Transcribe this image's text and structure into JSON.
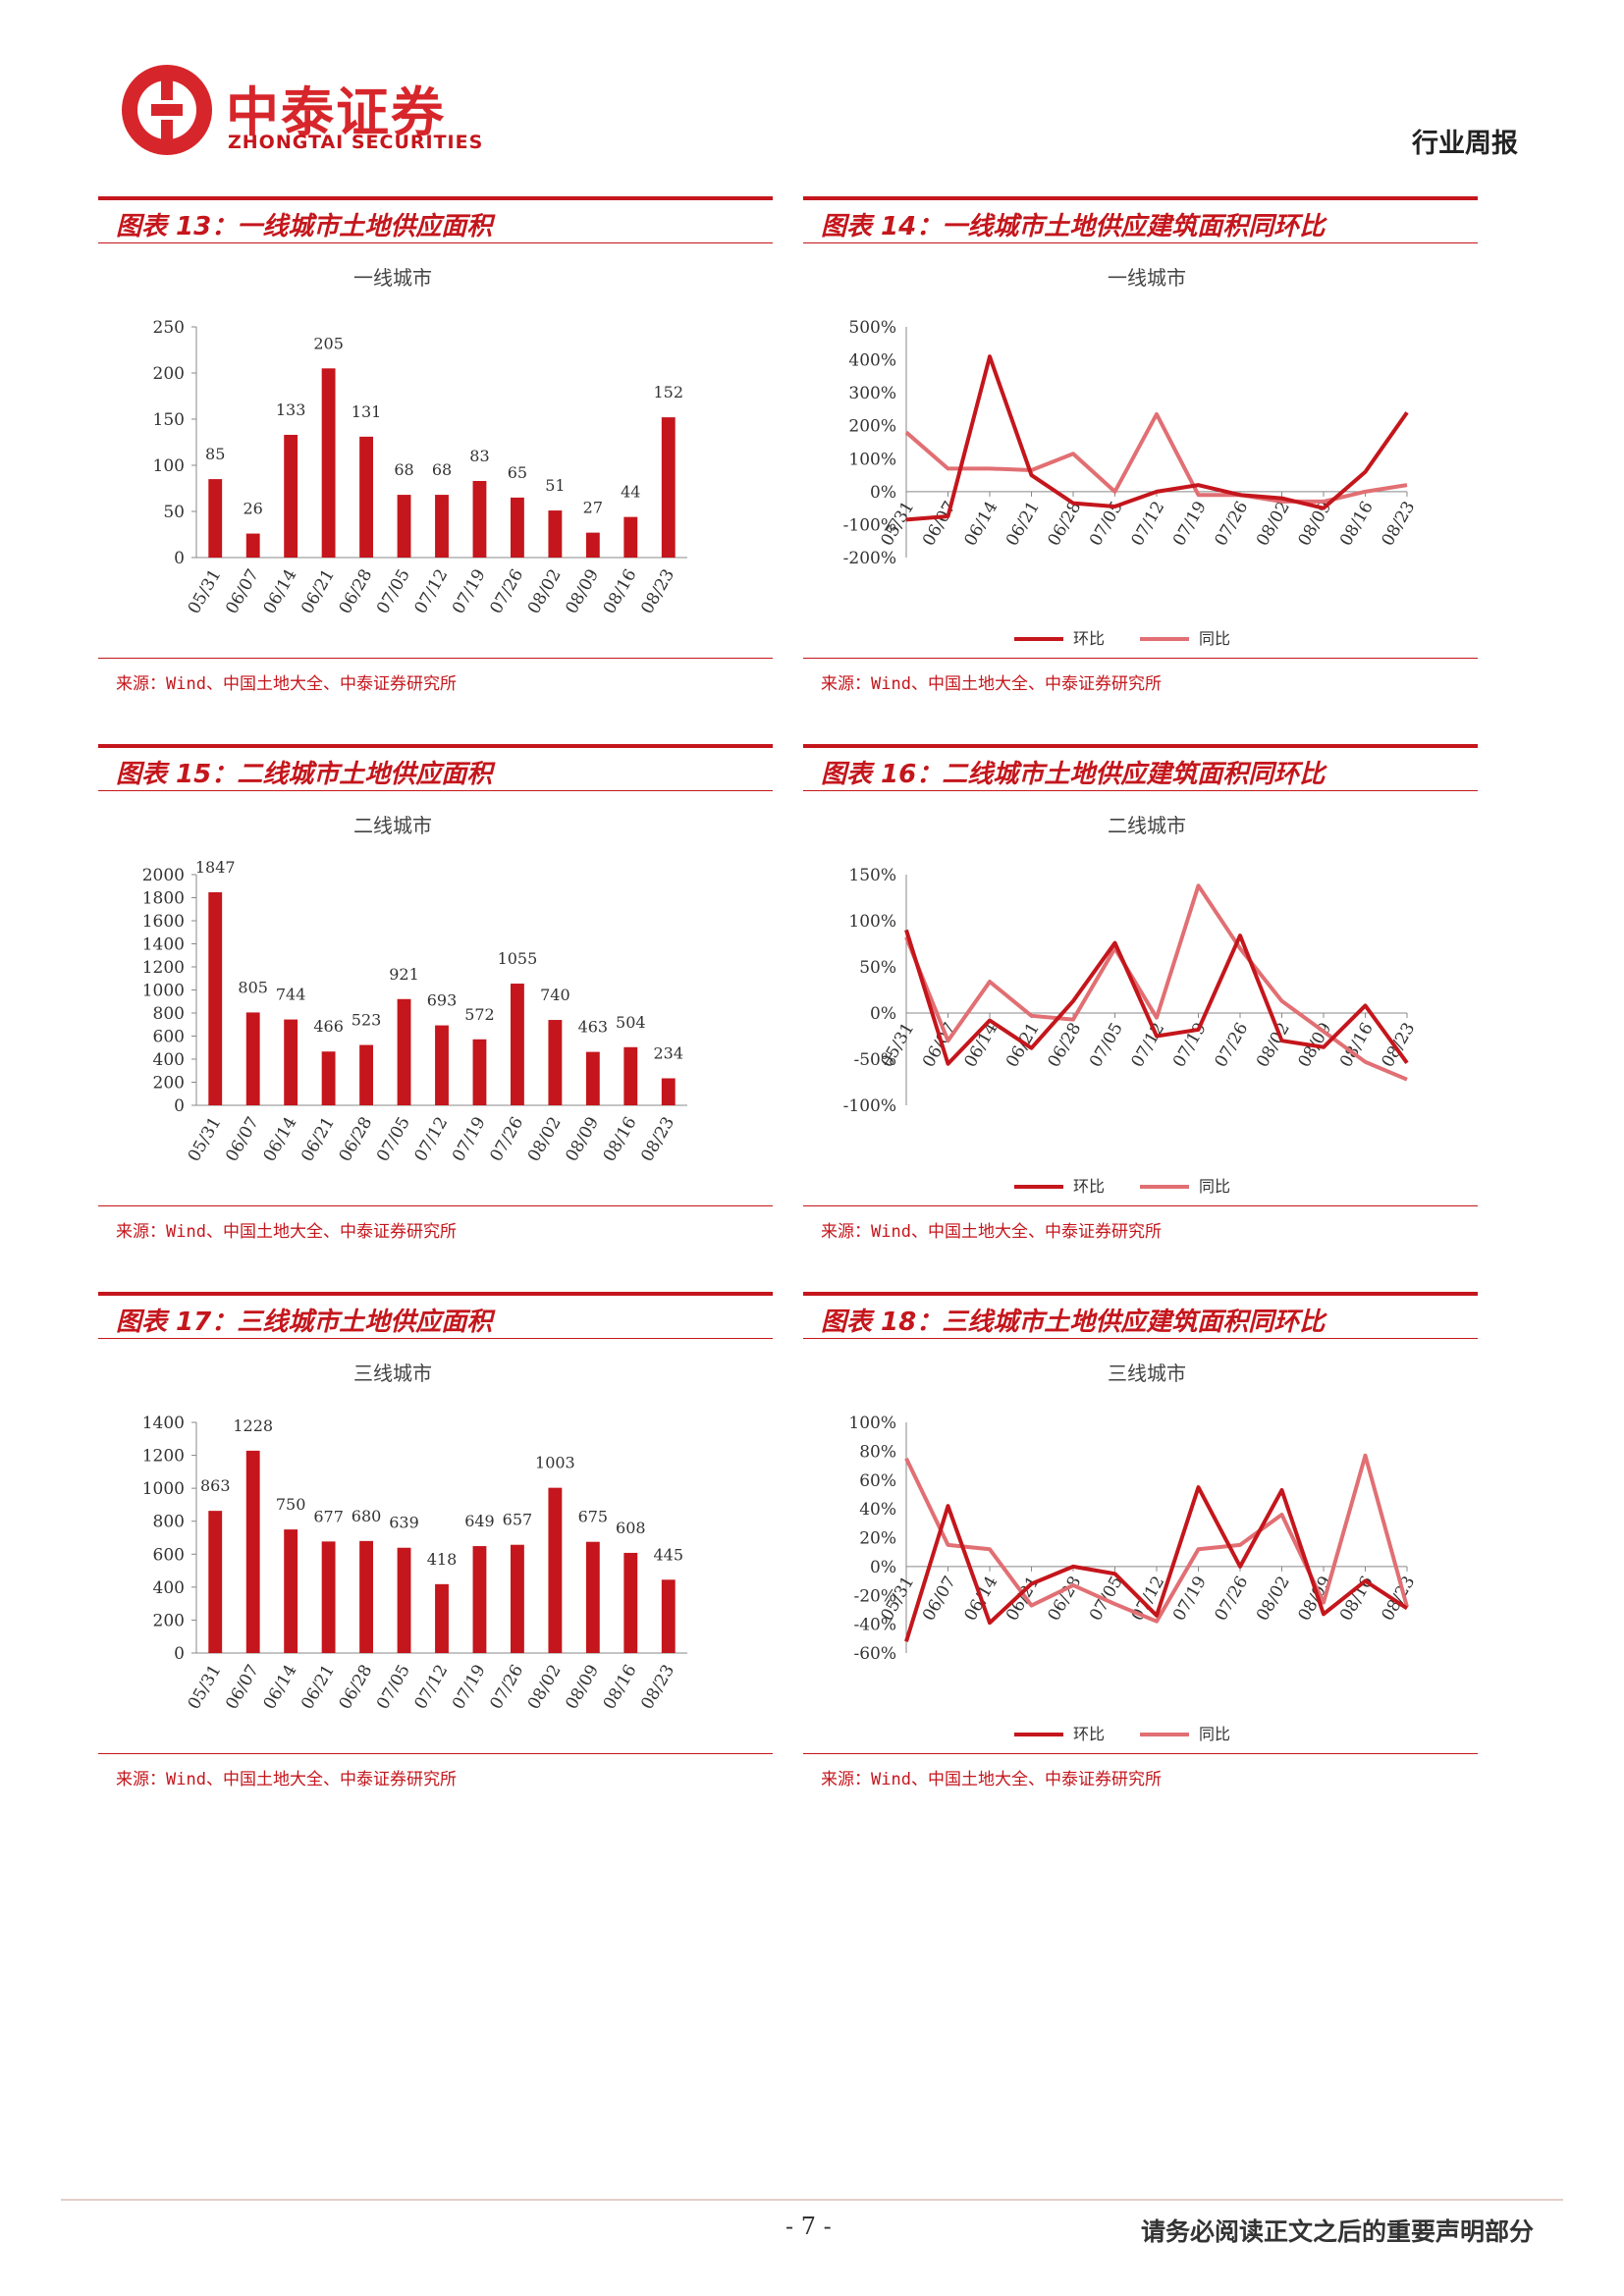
{
  "header": {
    "company_cn": "中泰证券",
    "company_en": "ZHONGTAI SECURITIES",
    "report_type": "行业周报"
  },
  "colors": {
    "accent": "#c4161c",
    "bar": "#c4161c",
    "line_hb": "#c4161c",
    "line_tb": "#e16f73"
  },
  "panels": [
    {
      "title": "图表 13：一线城市土地供应面积",
      "source": "来源：Wind、中国土地大全、中泰证券研究所"
    },
    {
      "title": "图表 14：一线城市土地供应建筑面积同环比",
      "source": "来源：Wind、中国土地大全、中泰证券研究所"
    },
    {
      "title": "图表 15：二线城市土地供应面积",
      "source": "来源：Wind、中国土地大全、中泰证券研究所"
    },
    {
      "title": "图表 16：二线城市土地供应建筑面积同环比",
      "source": "来源：Wind、中国土地大全、中泰证券研究所"
    },
    {
      "title": "图表 17：三线城市土地供应面积",
      "source": "来源：Wind、中国土地大全、中泰证券研究所"
    },
    {
      "title": "图表 18：三线城市土地供应建筑面积同环比",
      "source": "来源：Wind、中国土地大全、中泰证券研究所"
    }
  ],
  "chart_data": [
    {
      "type": "bar",
      "title": "一线城市",
      "categories": [
        "05/31",
        "06/07",
        "06/14",
        "06/21",
        "06/28",
        "07/05",
        "07/12",
        "07/19",
        "07/26",
        "08/02",
        "08/09",
        "08/16",
        "08/23"
      ],
      "values": [
        85,
        26,
        133,
        205,
        131,
        68,
        68,
        83,
        65,
        51,
        27,
        44,
        152
      ],
      "yticks": [
        "0",
        "50",
        "100",
        "150",
        "200",
        "250"
      ],
      "ylim": [
        0,
        250
      ]
    },
    {
      "type": "line",
      "title": "一线城市",
      "categories": [
        "05/31",
        "06/07",
        "06/14",
        "06/21",
        "06/28",
        "07/05",
        "07/12",
        "07/19",
        "07/26",
        "08/02",
        "08/09",
        "08/16",
        "08/23"
      ],
      "series": [
        {
          "name": "环比",
          "values": [
            -85,
            -75,
            410,
            50,
            -35,
            -45,
            0,
            20,
            -10,
            -20,
            -50,
            60,
            240
          ]
        },
        {
          "name": "同比",
          "values": [
            180,
            70,
            70,
            65,
            115,
            0,
            235,
            -10,
            -10,
            -30,
            -30,
            0,
            20
          ]
        }
      ],
      "yticks": [
        "-200%",
        "-100%",
        "0%",
        "100%",
        "200%",
        "300%",
        "400%",
        "500%"
      ],
      "ylim": [
        -200,
        500
      ]
    },
    {
      "type": "bar",
      "title": "二线城市",
      "categories": [
        "05/31",
        "06/07",
        "06/14",
        "06/21",
        "06/28",
        "07/05",
        "07/12",
        "07/19",
        "07/26",
        "08/02",
        "08/09",
        "08/16",
        "08/23"
      ],
      "values": [
        1847,
        805,
        744,
        466,
        523,
        921,
        693,
        572,
        1055,
        740,
        463,
        504,
        234
      ],
      "yticks": [
        "0",
        "200",
        "400",
        "600",
        "800",
        "1000",
        "1200",
        "1400",
        "1600",
        "1800",
        "2000"
      ],
      "ylim": [
        0,
        2000
      ]
    },
    {
      "type": "line",
      "title": "二线城市",
      "categories": [
        "05/31",
        "06/07",
        "06/14",
        "06/21",
        "06/28",
        "07/05",
        "07/12",
        "07/19",
        "07/26",
        "08/02",
        "08/09",
        "08/16",
        "08/23"
      ],
      "series": [
        {
          "name": "环比",
          "values": [
            90,
            -55,
            -8,
            -38,
            13,
            76,
            -25,
            -18,
            84,
            -30,
            -37,
            8,
            -54
          ]
        },
        {
          "name": "同比",
          "values": [
            82,
            -30,
            34,
            -3,
            -7,
            70,
            -5,
            138,
            70,
            13,
            -20,
            -53,
            -72
          ]
        }
      ],
      "yticks": [
        "-100%",
        "-50%",
        "0%",
        "50%",
        "100%",
        "150%"
      ],
      "ylim": [
        -100,
        150
      ]
    },
    {
      "type": "bar",
      "title": "三线城市",
      "categories": [
        "05/31",
        "06/07",
        "06/14",
        "06/21",
        "06/28",
        "07/05",
        "07/12",
        "07/19",
        "07/26",
        "08/02",
        "08/09",
        "08/16",
        "08/23"
      ],
      "values": [
        863,
        1228,
        750,
        677,
        680,
        639,
        418,
        649,
        657,
        1003,
        675,
        608,
        445
      ],
      "yticks": [
        "0",
        "200",
        "400",
        "600",
        "800",
        "1000",
        "1200",
        "1400"
      ],
      "ylim": [
        0,
        1400
      ]
    },
    {
      "type": "line",
      "title": "三线城市",
      "categories": [
        "05/31",
        "06/07",
        "06/14",
        "06/21",
        "06/28",
        "07/05",
        "07/12",
        "07/19",
        "07/26",
        "08/02",
        "08/09",
        "08/16",
        "08/23"
      ],
      "series": [
        {
          "name": "环比",
          "values": [
            -52,
            42,
            -39,
            -12,
            0,
            -5,
            -34,
            55,
            0,
            53,
            -33,
            -10,
            -29
          ]
        },
        {
          "name": "同比",
          "values": [
            75,
            15,
            12,
            -27,
            -13,
            -26,
            -38,
            12,
            15,
            36,
            -25,
            77,
            -28
          ]
        }
      ],
      "yticks": [
        "-60%",
        "-40%",
        "-20%",
        "0%",
        "20%",
        "40%",
        "60%",
        "80%",
        "100%"
      ],
      "ylim": [
        -60,
        100
      ]
    }
  ],
  "footer": {
    "page_number": "- 7 -",
    "disclaimer": "请务必阅读正文之后的重要声明部分"
  }
}
